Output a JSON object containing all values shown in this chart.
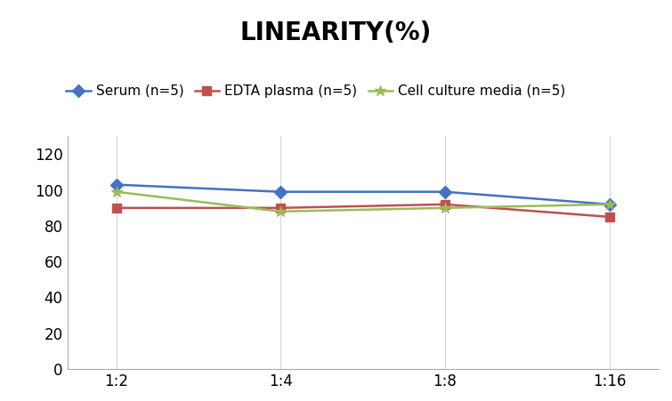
{
  "title": "LINEARITY(%)",
  "title_fontsize": 20,
  "title_fontweight": "bold",
  "x_labels": [
    "1:2",
    "1:4",
    "1:8",
    "1:16"
  ],
  "series": [
    {
      "label": "Serum (n=5)",
      "values": [
        103,
        99,
        99,
        92
      ],
      "color": "#4472C4",
      "marker": "D",
      "markersize": 7,
      "linewidth": 1.8
    },
    {
      "label": "EDTA plasma (n=5)",
      "values": [
        90,
        90,
        92,
        85
      ],
      "color": "#C0504D",
      "marker": "s",
      "markersize": 7,
      "linewidth": 1.8
    },
    {
      "label": "Cell culture media (n=5)",
      "values": [
        99,
        88,
        90,
        92
      ],
      "color": "#9BBB59",
      "marker": "*",
      "markersize": 9,
      "linewidth": 1.8
    }
  ],
  "ylim": [
    0,
    130
  ],
  "yticks": [
    0,
    20,
    40,
    60,
    80,
    100,
    120
  ],
  "ylabel": "",
  "xlabel": "",
  "background_color": "#ffffff",
  "grid_color": "#d5d5d5",
  "legend_fontsize": 11,
  "axis_fontsize": 12
}
